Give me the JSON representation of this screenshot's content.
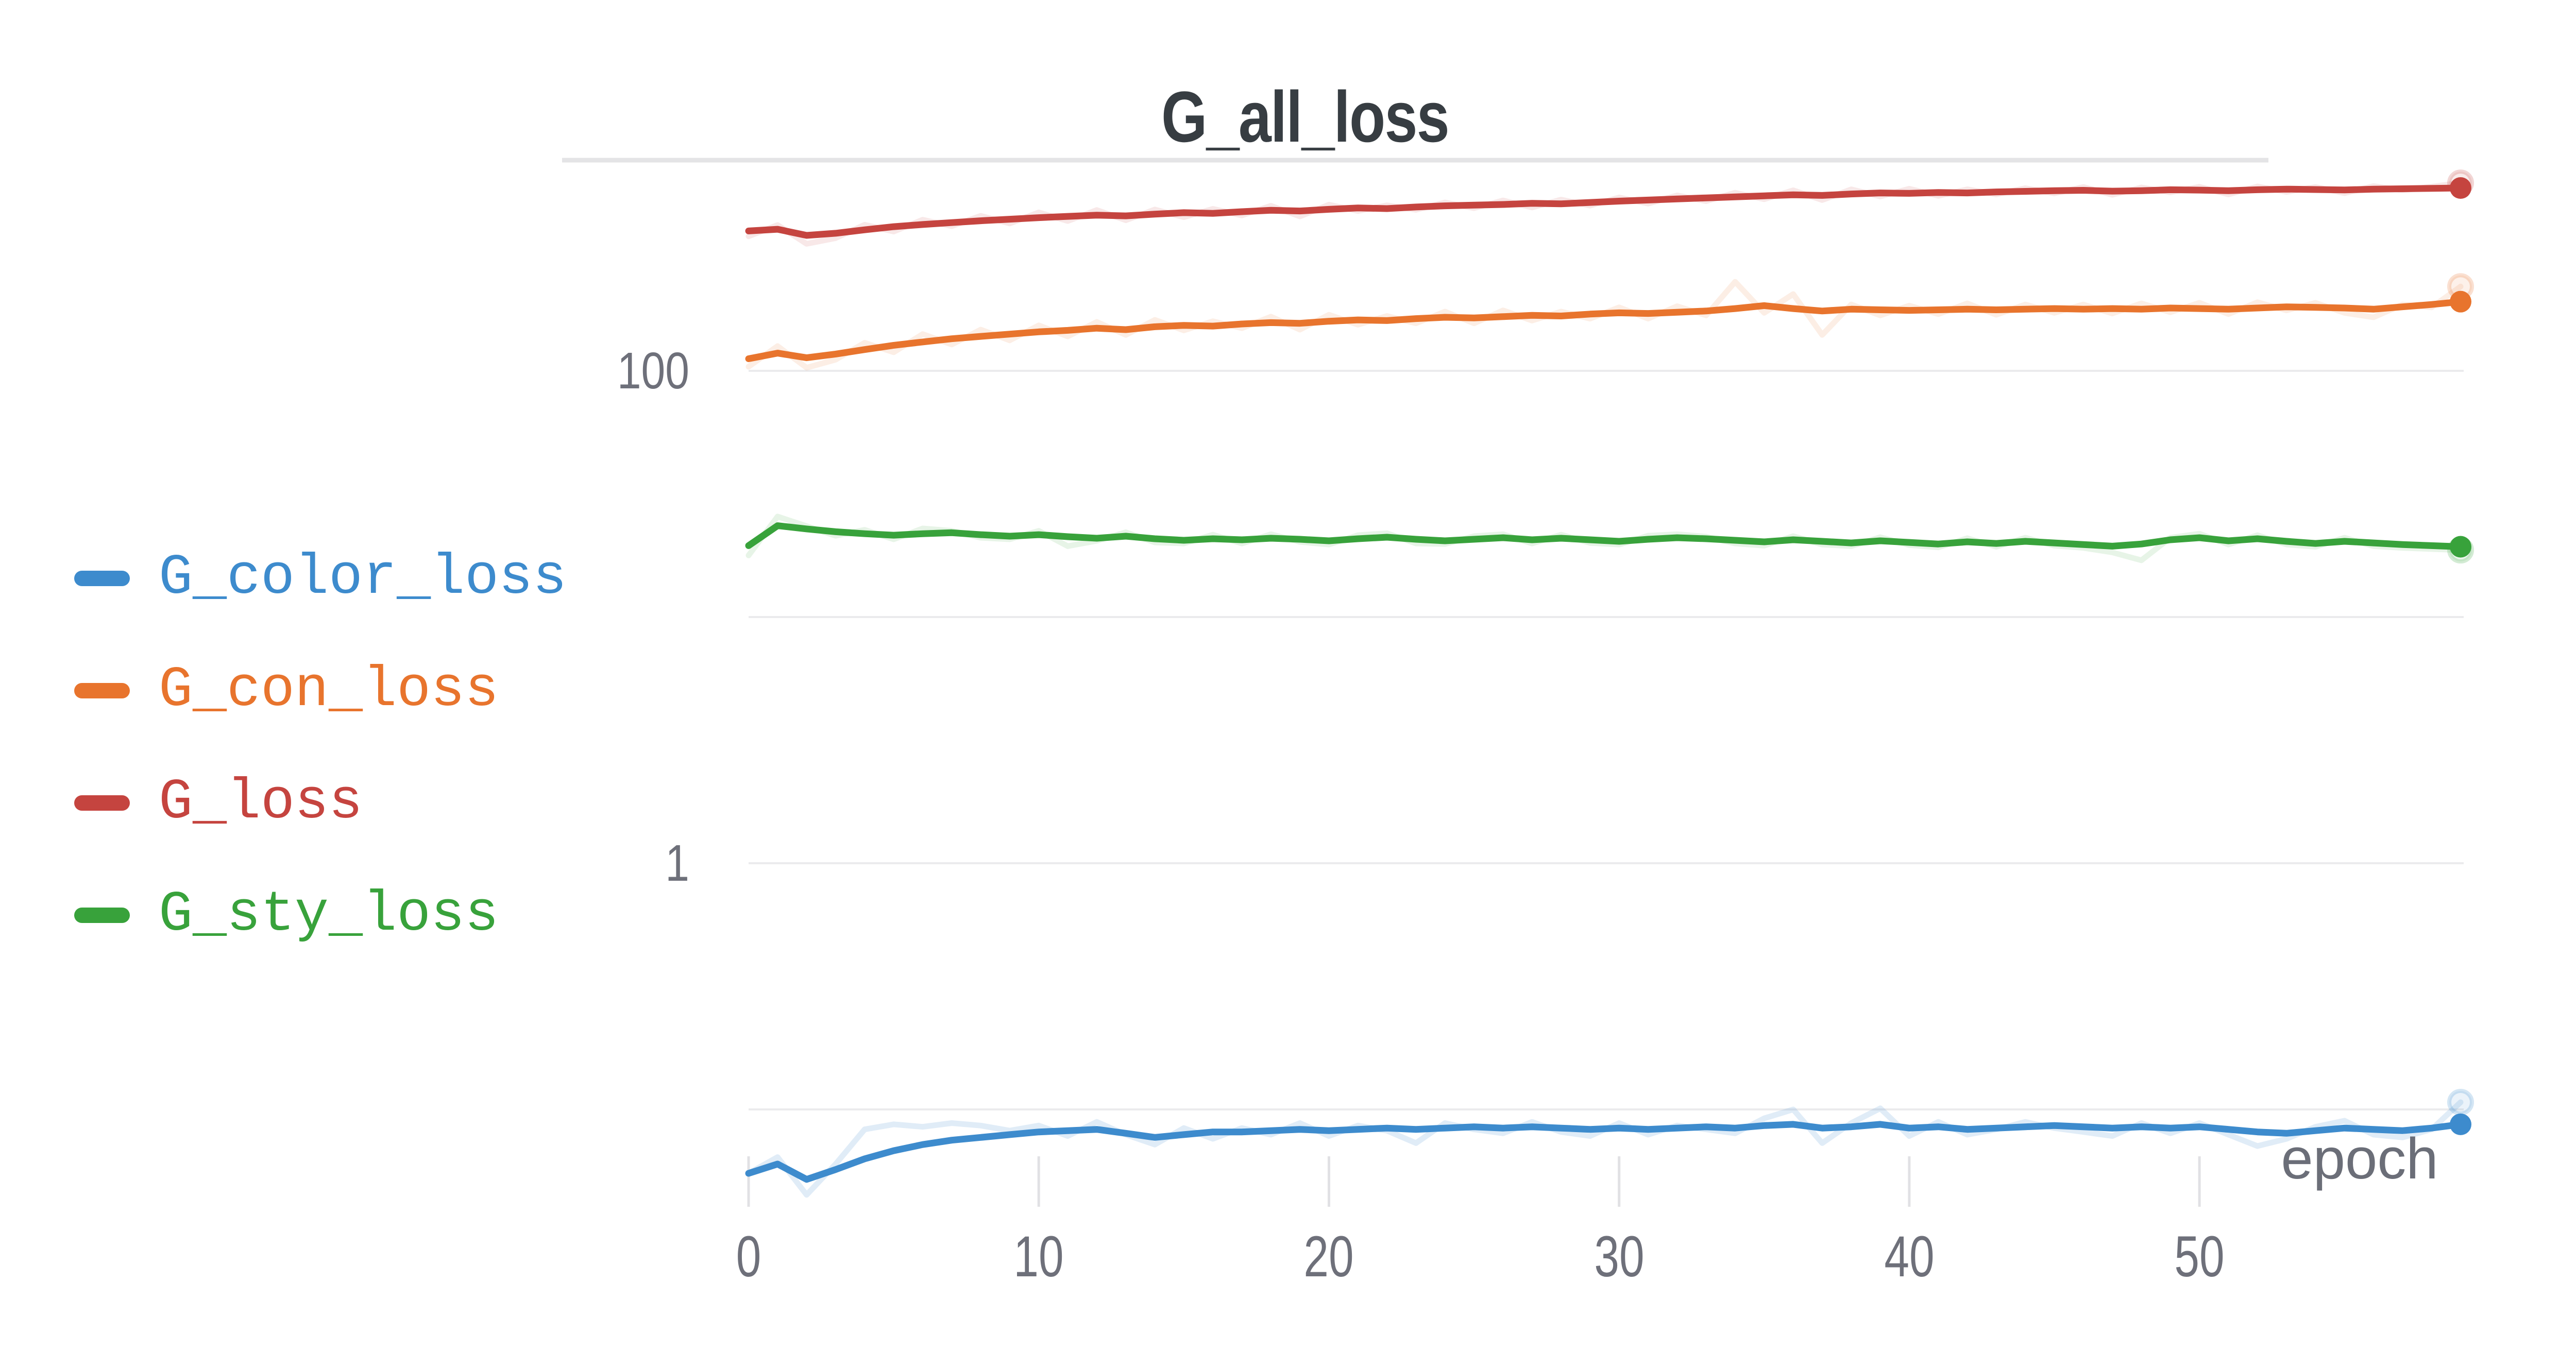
{
  "page": {
    "background": "#ffffff"
  },
  "chart_data": {
    "type": "line",
    "title": "G_all_loss",
    "x_axis": {
      "label": "epoch",
      "ticks": [
        0,
        10,
        20,
        30,
        40,
        50
      ],
      "range": [
        0,
        59
      ]
    },
    "y_axis": {
      "scale": "log",
      "tick_labels": [
        {
          "value": 100,
          "label": "100"
        },
        {
          "value": 1,
          "label": "1"
        }
      ],
      "gridline_values": [
        100,
        10,
        1,
        0.1
      ]
    },
    "legend_position": "left",
    "smoothing": true,
    "colors": {
      "grid": "#ebebed",
      "panel_border": "#e4e4e6",
      "tick": "#e1e1e4",
      "axis_text": "#6e707a",
      "title_text": "#373d42"
    },
    "series": [
      {
        "name": "G_color_loss",
        "color": "#3d8bcd",
        "raw_opacity": 0.16,
        "smoothed": [
          0.055,
          0.06,
          0.052,
          0.057,
          0.063,
          0.068,
          0.072,
          0.075,
          0.077,
          0.079,
          0.081,
          0.082,
          0.083,
          0.08,
          0.077,
          0.079,
          0.081,
          0.081,
          0.082,
          0.083,
          0.082,
          0.083,
          0.084,
          0.083,
          0.084,
          0.085,
          0.084,
          0.085,
          0.084,
          0.083,
          0.084,
          0.083,
          0.084,
          0.085,
          0.084,
          0.086,
          0.087,
          0.084,
          0.085,
          0.087,
          0.084,
          0.085,
          0.083,
          0.084,
          0.085,
          0.086,
          0.085,
          0.084,
          0.085,
          0.084,
          0.085,
          0.083,
          0.081,
          0.08,
          0.082,
          0.084,
          0.083,
          0.082,
          0.084,
          0.087
        ],
        "raw": [
          0.055,
          0.064,
          0.045,
          0.06,
          0.083,
          0.087,
          0.085,
          0.088,
          0.086,
          0.082,
          0.086,
          0.078,
          0.089,
          0.079,
          0.072,
          0.084,
          0.076,
          0.084,
          0.079,
          0.088,
          0.078,
          0.086,
          0.082,
          0.073,
          0.088,
          0.083,
          0.08,
          0.089,
          0.081,
          0.078,
          0.088,
          0.079,
          0.086,
          0.083,
          0.08,
          0.092,
          0.1,
          0.073,
          0.088,
          0.101,
          0.078,
          0.089,
          0.079,
          0.083,
          0.089,
          0.084,
          0.081,
          0.078,
          0.088,
          0.08,
          0.088,
          0.079,
          0.071,
          0.076,
          0.085,
          0.09,
          0.079,
          0.077,
          0.083,
          0.107
        ]
      },
      {
        "name": "G_con_loss",
        "color": "#e8742d",
        "raw_opacity": 0.12,
        "smoothed": [
          112,
          118,
          113,
          117,
          122,
          127,
          131,
          135,
          138,
          141,
          144,
          146,
          149,
          147,
          151,
          153,
          152,
          155,
          157,
          156,
          159,
          161,
          160,
          163,
          165,
          164,
          166,
          168,
          167,
          170,
          172,
          171,
          173,
          175,
          179,
          184,
          179,
          175,
          178,
          177,
          176,
          177,
          178,
          177,
          178,
          179,
          178,
          179,
          178,
          180,
          179,
          178,
          180,
          182,
          181,
          180,
          178,
          182,
          186,
          191
        ],
        "raw": [
          104,
          126,
          103,
          111,
          130,
          119,
          141,
          128,
          147,
          133,
          153,
          138,
          158,
          140,
          161,
          146,
          159,
          149,
          166,
          147,
          169,
          154,
          167,
          156,
          174,
          156,
          176,
          160,
          174,
          163,
          181,
          163,
          183,
          168,
          230,
          172,
          205,
          140,
          186,
          168,
          184,
          170,
          188,
          169,
          186,
          172,
          186,
          171,
          188,
          173,
          189,
          170,
          190,
          176,
          189,
          172,
          165,
          186,
          181,
          220
        ]
      },
      {
        "name": "G_loss",
        "color": "#c5443f",
        "raw_opacity": 0.12,
        "smoothed": [
          370,
          376,
          355,
          362,
          374,
          385,
          393,
          400,
          407,
          413,
          419,
          424,
          429,
          426,
          433,
          439,
          436,
          443,
          449,
          446,
          453,
          459,
          456,
          463,
          468,
          471,
          474,
          479,
          477,
          483,
          489,
          494,
          499,
          504,
          509,
          514,
          519,
          516,
          523,
          528,
          526,
          530,
          528,
          533,
          536,
          539,
          541,
          537,
          539,
          544,
          542,
          539,
          544,
          547,
          545,
          543,
          547,
          549,
          551,
          553
        ],
        "raw": [
          352,
          391,
          328,
          346,
          392,
          368,
          411,
          387,
          426,
          397,
          440,
          406,
          450,
          409,
          452,
          421,
          455,
          428,
          468,
          424,
          473,
          446,
          470,
          451,
          483,
          458,
          492,
          461,
          496,
          469,
          506,
          478,
          516,
          489,
          529,
          498,
          541,
          494,
          546,
          511,
          549,
          514,
          546,
          521,
          552,
          526,
          558,
          519,
          556,
          531,
          559,
          521,
          561,
          533,
          558,
          527,
          563,
          541,
          560,
          580
        ]
      },
      {
        "name": "G_sty_loss",
        "color": "#38a23b",
        "raw_opacity": 0.12,
        "smoothed": [
          19.5,
          23.5,
          22.8,
          22.2,
          21.8,
          21.5,
          21.8,
          22.0,
          21.6,
          21.3,
          21.6,
          21.2,
          20.9,
          21.3,
          20.8,
          20.5,
          20.8,
          20.6,
          20.9,
          20.7,
          20.4,
          20.8,
          21.1,
          20.7,
          20.4,
          20.7,
          21.0,
          20.6,
          20.9,
          20.6,
          20.3,
          20.7,
          21.0,
          20.8,
          20.5,
          20.2,
          20.6,
          20.3,
          20.0,
          20.4,
          20.1,
          19.8,
          20.2,
          19.9,
          20.3,
          20.0,
          19.7,
          19.4,
          19.8,
          20.6,
          21.0,
          20.4,
          20.8,
          20.3,
          19.9,
          20.3,
          20.0,
          19.7,
          19.5,
          19.3
        ],
        "raw": [
          17.8,
          25.6,
          23.4,
          21.4,
          22.6,
          20.7,
          22.9,
          22.4,
          21.0,
          20.7,
          22.4,
          19.4,
          20.4,
          22.1,
          20.1,
          19.9,
          21.6,
          19.9,
          21.7,
          20.2,
          19.7,
          21.5,
          21.9,
          19.9,
          19.8,
          21.3,
          21.7,
          19.9,
          21.6,
          20.0,
          19.7,
          21.4,
          21.7,
          21.2,
          19.9,
          19.5,
          21.3,
          19.7,
          19.4,
          21.1,
          19.6,
          19.2,
          20.9,
          19.3,
          21.0,
          19.5,
          19.1,
          18.3,
          17.0,
          21.0,
          21.8,
          19.7,
          21.5,
          19.7,
          19.3,
          21.0,
          19.4,
          19.1,
          18.9,
          18.7
        ]
      }
    ]
  }
}
